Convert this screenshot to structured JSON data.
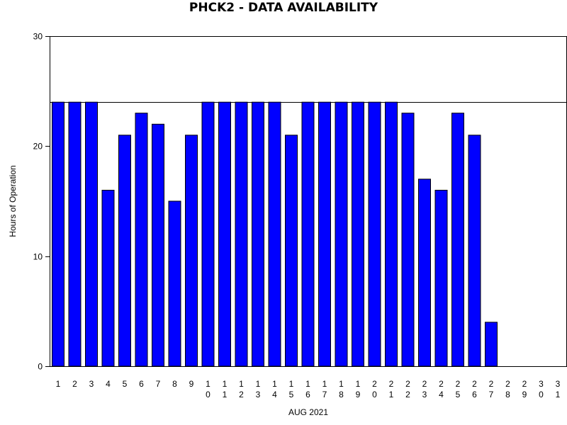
{
  "chart_data": {
    "type": "bar",
    "title": "PHCK2 - DATA AVAILABILITY",
    "xlabel": "AUG 2021",
    "ylabel": "Hours of Operation",
    "ylim": [
      0,
      30
    ],
    "yticks": [
      0,
      10,
      20,
      30
    ],
    "reference_line": 24,
    "grid": false,
    "bar_color": "#0000FF",
    "bar_edge_color": "#000000",
    "categories": [
      "1",
      "2",
      "3",
      "4",
      "5",
      "6",
      "7",
      "8",
      "9",
      "10",
      "11",
      "12",
      "13",
      "14",
      "15",
      "16",
      "17",
      "18",
      "19",
      "20",
      "21",
      "22",
      "23",
      "24",
      "25",
      "26",
      "27",
      "28",
      "29",
      "30",
      "31"
    ],
    "values": [
      24,
      24,
      24,
      16,
      21,
      23,
      22,
      15,
      21,
      24,
      24,
      24,
      24,
      24,
      21,
      24,
      24,
      24,
      24,
      24,
      24,
      23,
      17,
      16,
      23,
      21,
      4,
      0,
      0,
      0,
      0
    ]
  }
}
